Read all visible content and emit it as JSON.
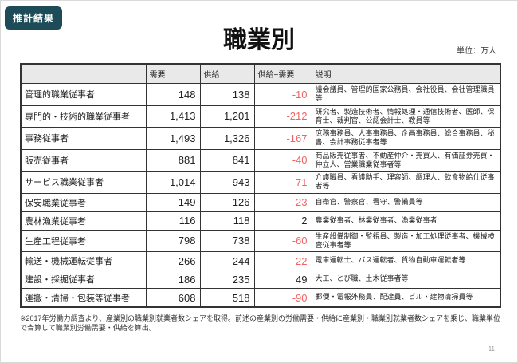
{
  "page": {
    "badge": "推計結果",
    "title": "職業別",
    "unit_label": "単位：万人",
    "footnote": "※2017年労働力調査より、産業別の職業別就業者数シェアを取得。前述の産業別の労働需要・供給に産業別・職業別就業者数シェアを乗じ、職業単位で合算して職業別労働需要・供給を算出。",
    "page_number": "11"
  },
  "colors": {
    "badge_bg": "#1d4b57",
    "negative": "#f06464",
    "positive": "#222222",
    "header_bg": "#e9e9e9"
  },
  "table": {
    "headers": [
      "",
      "需要",
      "供給",
      "供給−需要",
      "説明"
    ],
    "rows": [
      {
        "name": "管理的職業従事者",
        "demand": "148",
        "supply": "138",
        "diff": "-10",
        "diff_negative": true,
        "desc": "議会議員、管理的国家公務員、会社役員、会社管理職員等"
      },
      {
        "name": "専門的・技術的職業従事者",
        "demand": "1,413",
        "supply": "1,201",
        "diff": "-212",
        "diff_negative": true,
        "desc": "研究者、製造技術者、情報処理・通信技術者、医師、保育士、裁判官、公認会計士、教員等"
      },
      {
        "name": "事務従事者",
        "demand": "1,493",
        "supply": "1,326",
        "diff": "-167",
        "diff_negative": true,
        "desc": "庶務事務員、人事事務員、企画事務員、総合事務員、秘書、会計事務従事者等"
      },
      {
        "name": "販売従事者",
        "demand": "881",
        "supply": "841",
        "diff": "-40",
        "diff_negative": true,
        "desc": "商品販売従事者、不動産仲介・売買人、有価証券売買・仲立人、営業職業従事者等"
      },
      {
        "name": "サービス職業従事者",
        "demand": "1,014",
        "supply": "943",
        "diff": "-71",
        "diff_negative": true,
        "desc": "介護職員、看護助手、理容師、調理人、飲食物給仕従事者等"
      },
      {
        "name": "保安職業従事者",
        "demand": "149",
        "supply": "126",
        "diff": "-23",
        "diff_negative": true,
        "desc": "自衛官、警察官、看守、警備員等"
      },
      {
        "name": "農林漁業従事者",
        "demand": "116",
        "supply": "118",
        "diff": "2",
        "diff_negative": false,
        "desc": "農業従事者、林業従事者、漁業従事者"
      },
      {
        "name": "生産工程従事者",
        "demand": "798",
        "supply": "738",
        "diff": "-60",
        "diff_negative": true,
        "desc": "生産設備制御・監視員、製造・加工処理従事者、機械検査従事者等"
      },
      {
        "name": "輸送・機械運転従事者",
        "demand": "266",
        "supply": "244",
        "diff": "-22",
        "diff_negative": true,
        "desc": "電車運転士、バス運転者、貨物自動車運転者等"
      },
      {
        "name": "建設・採掘従事者",
        "demand": "186",
        "supply": "235",
        "diff": "49",
        "diff_negative": false,
        "desc": "大工、とび職、土木従事者等"
      },
      {
        "name": "運搬・清掃・包装等従事者",
        "demand": "608",
        "supply": "518",
        "diff": "-90",
        "diff_negative": true,
        "desc": "郵便・電報外務員、配達員、ビル・建物清掃員等"
      }
    ]
  }
}
